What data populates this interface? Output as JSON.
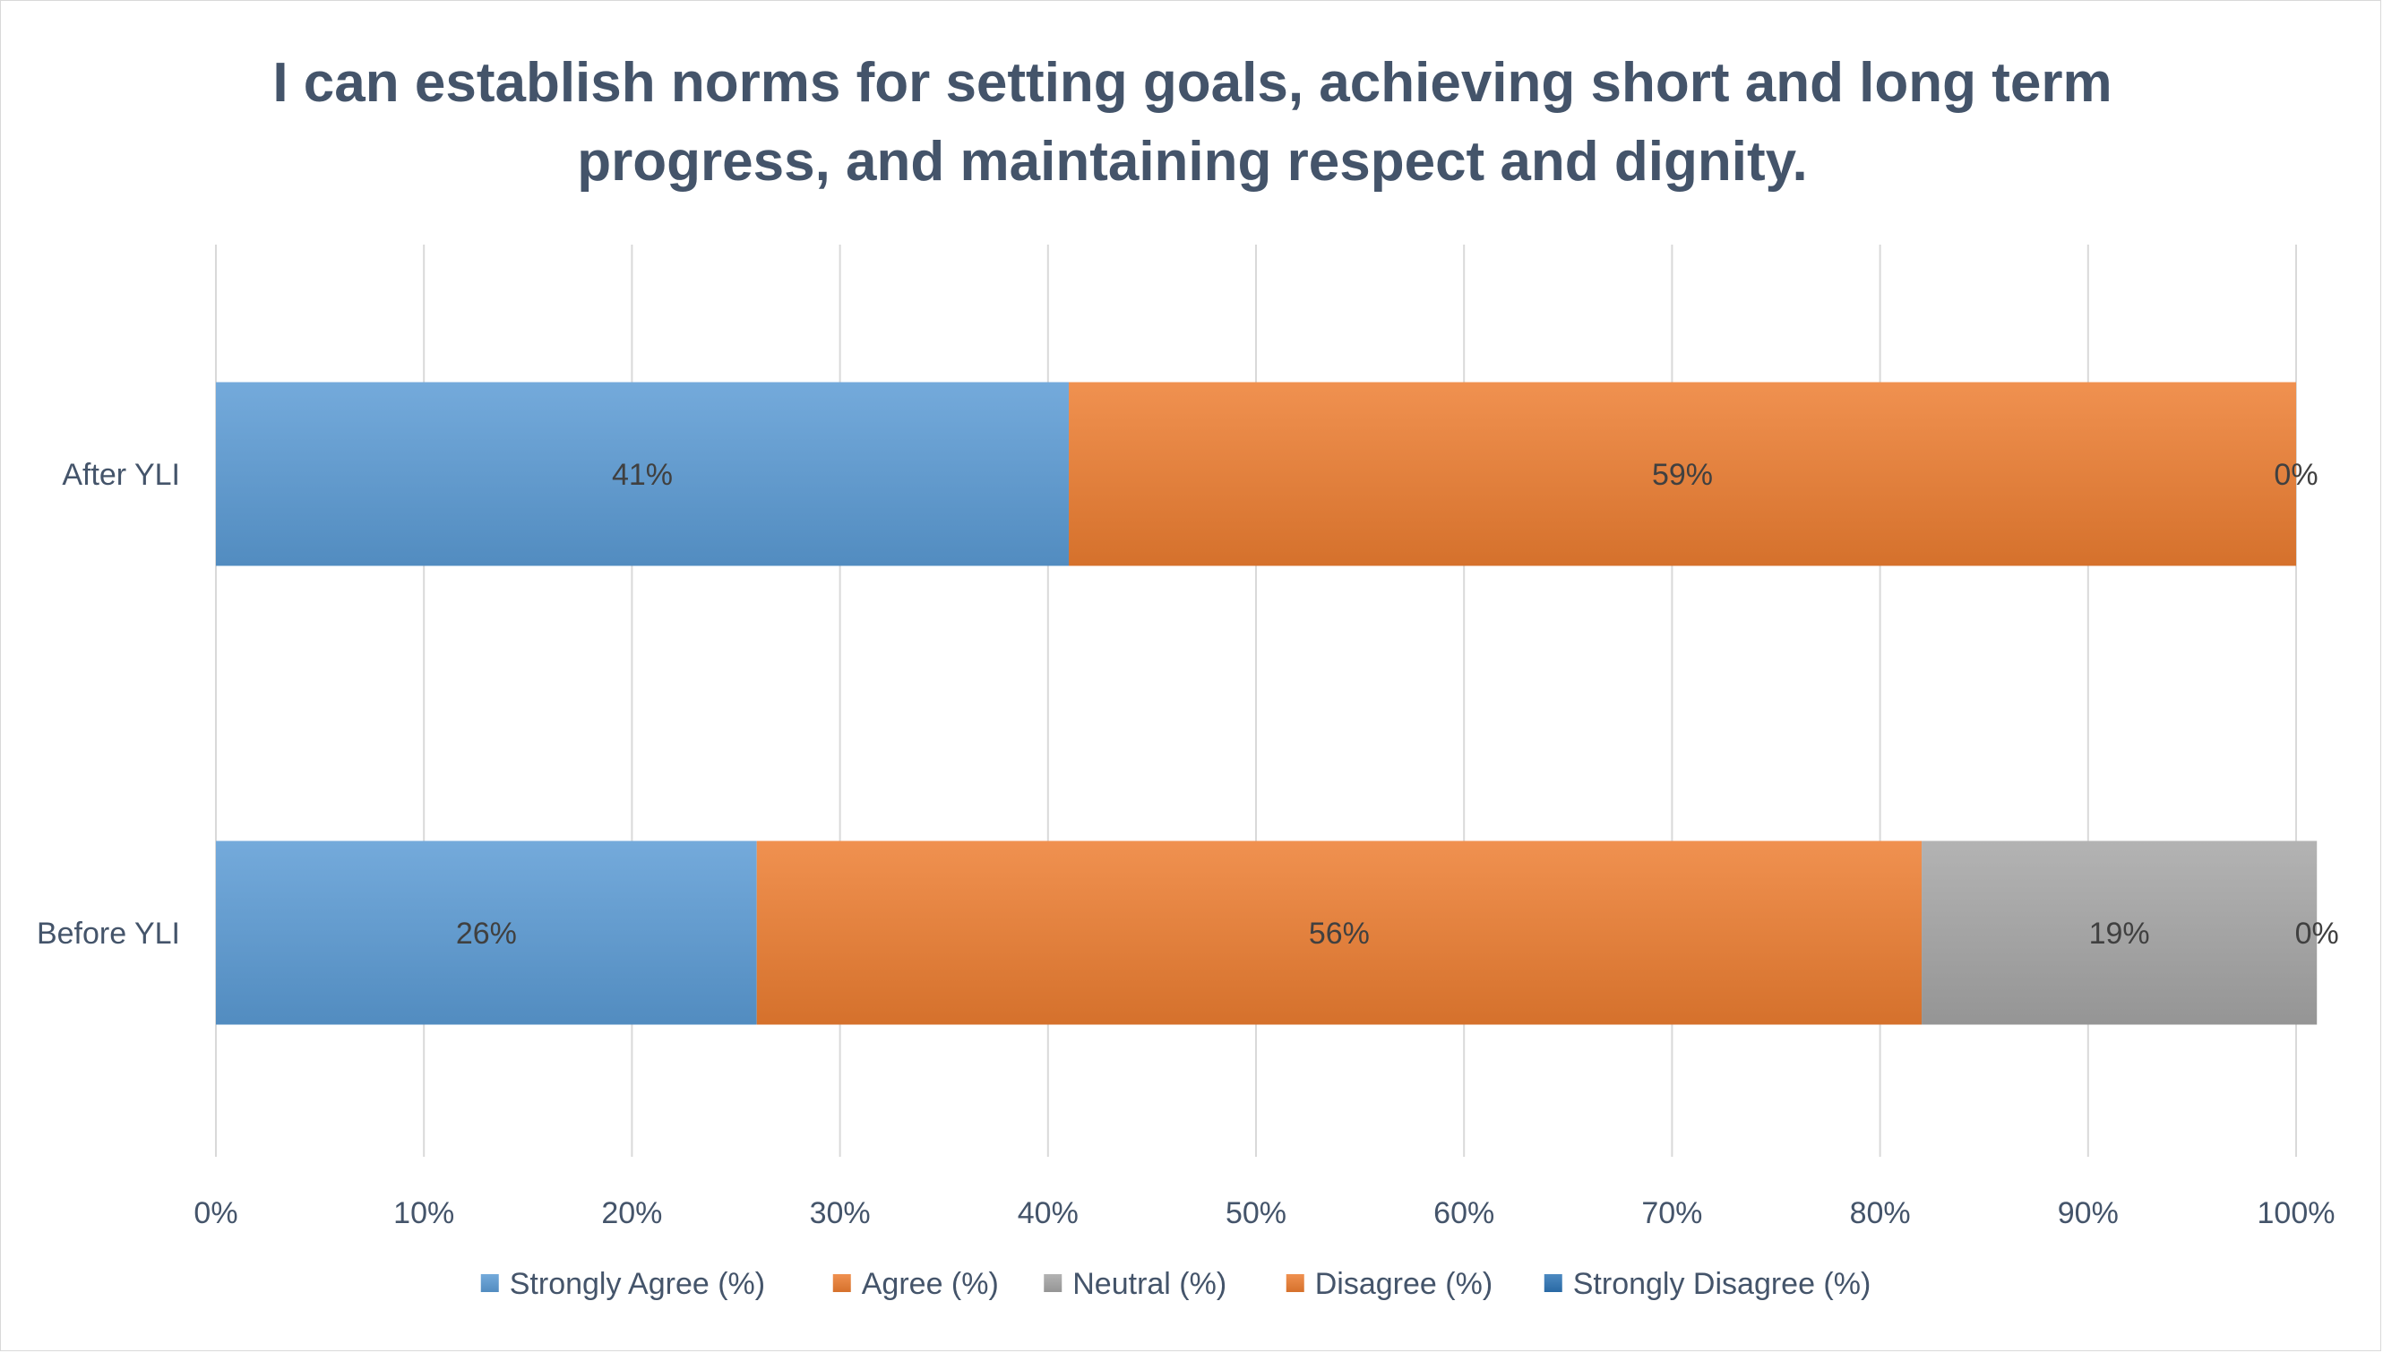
{
  "chart_data": {
    "type": "bar",
    "orientation": "horizontal",
    "stacked": "percent",
    "title": "I can establish norms for setting goals, achieving short and long term progress, and maintaining respect and dignity.",
    "title_lines": [
      "I can establish norms for setting goals, achieving short and long term",
      "progress, and maintaining respect and dignity."
    ],
    "categories": [
      "After YLI",
      "Before YLI"
    ],
    "series": [
      {
        "name": "Strongly Agree (%)",
        "values": [
          41,
          26
        ],
        "labels": [
          "41%",
          "26%"
        ],
        "color": "#5b9bd5"
      },
      {
        "name": "Agree (%)",
        "values": [
          59,
          56
        ],
        "labels": [
          "59%",
          "56%"
        ],
        "color": "#ed7d31"
      },
      {
        "name": "Neutral (%)",
        "values": [
          0,
          19
        ],
        "labels": [
          "",
          "19%"
        ],
        "color": "#a5a5a5"
      },
      {
        "name": "Disagree (%)",
        "values": [
          0,
          0
        ],
        "labels": [
          "0%",
          "0%"
        ],
        "color": "#ed7d31"
      },
      {
        "name": "Strongly Disagree (%)",
        "values": [
          0,
          0
        ],
        "labels": [
          "",
          ""
        ],
        "color": "#2e75b6"
      }
    ],
    "xlim": [
      0,
      100
    ],
    "xticks": [
      "0%",
      "10%",
      "20%",
      "30%",
      "40%",
      "50%",
      "60%",
      "70%",
      "80%",
      "90%",
      "100%"
    ],
    "grid": true,
    "legend_position": "bottom"
  }
}
